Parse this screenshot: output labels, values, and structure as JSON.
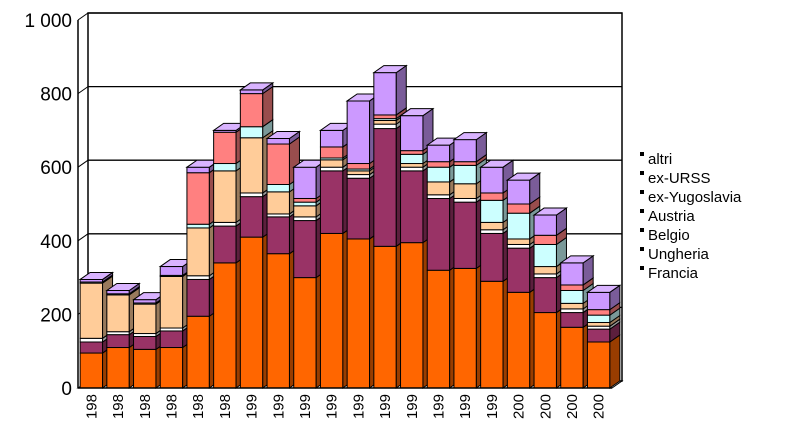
{
  "chart_data": {
    "type": "bar",
    "stacked": true,
    "three_d": true,
    "ylim": [
      0,
      1000
    ],
    "yticks": [
      "0",
      "200",
      "400",
      "600",
      "800",
      "1 000"
    ],
    "grid": true,
    "legend_position": "right",
    "categories": [
      "198",
      "198",
      "198",
      "198",
      "198",
      "198",
      "199",
      "199",
      "199",
      "199",
      "199",
      "199",
      "199",
      "199",
      "199",
      "199",
      "200",
      "200",
      "200",
      "200"
    ],
    "series": [
      {
        "name": "Francia",
        "color": "#ff6600",
        "values": [
          95,
          110,
          105,
          110,
          195,
          340,
          410,
          365,
          300,
          420,
          405,
          385,
          395,
          320,
          325,
          290,
          260,
          205,
          165,
          125
        ]
      },
      {
        "name": "Ungheria",
        "color": "#993366",
        "values": [
          30,
          35,
          35,
          45,
          100,
          100,
          110,
          100,
          155,
          170,
          165,
          320,
          195,
          195,
          180,
          130,
          120,
          95,
          40,
          35
        ]
      },
      {
        "name": "Belgio",
        "color": "#ffffff",
        "values": [
          10,
          8,
          8,
          8,
          10,
          10,
          10,
          8,
          10,
          10,
          10,
          12,
          10,
          10,
          10,
          10,
          10,
          10,
          10,
          8
        ]
      },
      {
        "name": "Austria",
        "color": "#ffcc99",
        "values": [
          150,
          100,
          80,
          140,
          130,
          140,
          150,
          60,
          30,
          20,
          10,
          10,
          10,
          35,
          40,
          20,
          15,
          20,
          15,
          10
        ]
      },
      {
        "name": "ex-Yugoslavia",
        "color": "#ccffff",
        "values": [
          3,
          3,
          3,
          3,
          10,
          20,
          30,
          20,
          10,
          5,
          5,
          5,
          25,
          40,
          50,
          60,
          70,
          60,
          35,
          20
        ]
      },
      {
        "name": "ex-URSS",
        "color": "#ff8080",
        "values": [
          0,
          0,
          0,
          0,
          140,
          85,
          90,
          110,
          10,
          30,
          15,
          10,
          10,
          15,
          10,
          20,
          25,
          25,
          15,
          15
        ]
      },
      {
        "name": "altri",
        "color": "#cc99ff",
        "values": [
          7,
          9,
          9,
          24,
          15,
          5,
          10,
          15,
          85,
          45,
          170,
          115,
          95,
          45,
          60,
          70,
          65,
          55,
          60,
          47
        ]
      }
    ]
  }
}
